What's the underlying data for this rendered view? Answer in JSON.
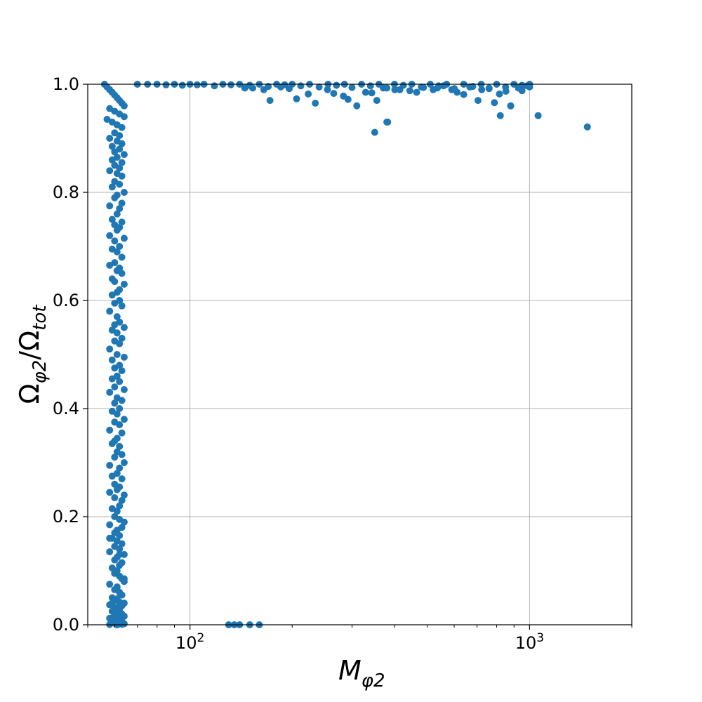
{
  "chart_data": {
    "type": "scatter",
    "title": "",
    "xlabel": {
      "main": "M",
      "sub": "φ2"
    },
    "ylabel": {
      "num": "Ω",
      "num_sub": "φ2",
      "slash": "/",
      "den": "Ω",
      "den_sub": "tot"
    },
    "xscale": "log",
    "xlim": [
      50,
      2000
    ],
    "ylim": [
      0.0,
      1.0
    ],
    "grid": true,
    "marker_color": "#1f77b4",
    "y_ticks": [
      {
        "value": 0.0,
        "label": "0.0"
      },
      {
        "value": 0.2,
        "label": "0.2"
      },
      {
        "value": 0.4,
        "label": "0.4"
      },
      {
        "value": 0.6,
        "label": "0.6"
      },
      {
        "value": 0.8,
        "label": "0.8"
      },
      {
        "value": 1.0,
        "label": "1.0"
      }
    ],
    "x_ticks": [
      {
        "value": 100,
        "base": "10",
        "exp": "2"
      },
      {
        "value": 1000,
        "base": "10",
        "exp": "3"
      }
    ],
    "x_minor_ticks": [
      50,
      60,
      70,
      80,
      90,
      200,
      300,
      400,
      500,
      600,
      700,
      800,
      900,
      2000
    ],
    "series": [
      {
        "name": "points",
        "x": [
          56,
          57,
          58,
          59,
          60,
          61,
          62,
          63,
          64,
          58,
          60,
          62,
          64,
          57,
          59,
          61,
          63,
          60,
          62,
          58,
          61,
          63,
          59,
          62,
          60,
          64,
          61,
          59,
          63,
          60,
          62,
          58,
          61,
          63,
          60,
          62,
          59,
          64,
          61,
          60,
          63,
          58,
          62,
          61,
          59,
          63,
          60,
          62,
          61,
          58,
          64,
          60,
          62,
          59,
          61,
          63,
          60,
          58,
          62,
          61,
          63,
          59,
          60,
          64,
          62,
          61,
          59,
          62,
          60,
          63,
          58,
          61,
          62,
          60,
          64,
          59,
          61,
          63,
          60,
          62,
          58,
          61,
          64,
          59,
          62,
          60,
          63,
          61,
          59,
          62,
          60,
          64,
          58,
          61,
          63,
          60,
          62,
          59,
          61,
          64,
          60,
          62,
          58,
          63,
          61,
          60,
          59,
          62,
          61,
          63,
          60,
          64,
          58,
          62,
          61,
          59,
          63,
          60,
          62,
          61,
          58,
          64,
          60,
          63,
          62,
          59,
          61,
          60,
          62,
          64,
          58,
          63,
          61,
          60,
          62,
          59,
          61,
          63,
          60,
          62,
          58,
          64,
          61,
          60,
          63,
          62,
          59,
          61,
          60,
          62,
          63,
          64,
          58,
          61,
          60,
          62,
          63,
          59,
          61,
          60,
          62,
          64,
          58,
          63,
          61,
          60,
          62,
          59,
          61,
          63,
          60,
          64,
          62,
          58,
          61,
          60,
          63,
          62,
          59,
          61,
          60,
          64,
          62,
          63,
          58,
          61,
          60,
          62,
          59,
          63,
          61,
          64,
          60,
          62,
          58,
          61,
          70,
          75,
          80,
          85,
          90,
          95,
          100,
          105,
          110,
          118,
          125,
          132,
          140,
          150,
          160,
          170,
          180,
          190,
          200,
          212,
          225,
          240,
          255,
          270,
          285,
          300,
          320,
          340,
          360,
          380,
          400,
          425,
          450,
          480,
          510,
          540,
          570,
          600,
          640,
          680,
          720,
          760,
          800,
          850,
          900,
          950,
          1000,
          145,
          150,
          165,
          185,
          206,
          234,
          265,
          292,
          310,
          343,
          355,
          382,
          415,
          465,
          535,
          590,
          640,
          705,
          760,
          815,
          880,
          950,
          1000,
          153,
          172,
          196,
          223,
          254,
          283,
          329,
          371,
          401,
          444,
          487,
          520,
          558,
          612,
          667,
          723,
          788,
          852,
          927,
          984,
          350,
          380,
          820,
          880,
          1060,
          1480,
          130,
          135,
          140,
          150,
          160
        ],
        "y": [
          1.0,
          0.995,
          0.99,
          0.985,
          0.98,
          0.975,
          0.97,
          0.965,
          0.96,
          0.955,
          0.95,
          0.945,
          0.94,
          0.935,
          0.93,
          0.925,
          0.92,
          0.91,
          0.905,
          0.9,
          0.895,
          0.89,
          0.885,
          0.88,
          0.875,
          0.87,
          0.865,
          0.86,
          0.855,
          0.85,
          0.845,
          0.84,
          0.835,
          0.83,
          0.82,
          0.815,
          0.81,
          0.8,
          0.795,
          0.79,
          0.78,
          0.775,
          0.77,
          0.76,
          0.75,
          0.745,
          0.74,
          0.735,
          0.73,
          0.72,
          0.715,
          0.71,
          0.7,
          0.695,
          0.69,
          0.68,
          0.67,
          0.665,
          0.66,
          0.655,
          0.65,
          0.64,
          0.635,
          0.63,
          0.62,
          0.615,
          0.61,
          0.6,
          0.595,
          0.59,
          0.58,
          0.57,
          0.56,
          0.555,
          0.55,
          0.545,
          0.54,
          0.53,
          0.525,
          0.52,
          0.51,
          0.5,
          0.495,
          0.49,
          0.48,
          0.475,
          0.47,
          0.46,
          0.455,
          0.45,
          0.44,
          0.435,
          0.43,
          0.42,
          0.415,
          0.41,
          0.4,
          0.395,
          0.39,
          0.38,
          0.375,
          0.37,
          0.36,
          0.355,
          0.345,
          0.34,
          0.335,
          0.33,
          0.32,
          0.315,
          0.31,
          0.3,
          0.295,
          0.29,
          0.28,
          0.275,
          0.27,
          0.26,
          0.255,
          0.25,
          0.245,
          0.24,
          0.235,
          0.23,
          0.22,
          0.215,
          0.21,
          0.2,
          0.195,
          0.19,
          0.185,
          0.18,
          0.175,
          0.17,
          0.165,
          0.16,
          0.155,
          0.15,
          0.145,
          0.14,
          0.135,
          0.13,
          0.125,
          0.12,
          0.115,
          0.11,
          0.105,
          0.1,
          0.095,
          0.09,
          0.085,
          0.08,
          0.075,
          0.07,
          0.065,
          0.06,
          0.055,
          0.05,
          0.048,
          0.045,
          0.042,
          0.04,
          0.037,
          0.035,
          0.032,
          0.03,
          0.028,
          0.025,
          0.022,
          0.02,
          0.018,
          0.016,
          0.014,
          0.012,
          0.01,
          0.008,
          0.007,
          0.006,
          0.005,
          0.004,
          0.003,
          0.002,
          0.0015,
          0.001,
          0.0005,
          0.0,
          0.012,
          0.025,
          0.04,
          0.055,
          0.07,
          0.085,
          0.1,
          0.13,
          0.16,
          0.0,
          1.0,
          1.0,
          1.0,
          0.999,
          1.0,
          0.998,
          1.0,
          0.999,
          1.0,
          0.997,
          1.0,
          0.999,
          1.0,
          0.998,
          1.0,
          0.996,
          1.0,
          0.999,
          1.0,
          0.997,
          1.0,
          0.995,
          1.0,
          0.998,
          1.0,
          0.994,
          1.0,
          0.997,
          1.0,
          0.993,
          1.0,
          0.998,
          1.0,
          0.995,
          1.0,
          0.997,
          1.0,
          0.992,
          1.0,
          0.996,
          1.0,
          0.993,
          1.0,
          0.995,
          1.0,
          0.998,
          1.0,
          0.993,
          0.998,
          0.99,
          0.995,
          0.973,
          0.965,
          0.983,
          0.972,
          0.96,
          0.984,
          0.97,
          0.93,
          0.99,
          0.985,
          0.993,
          0.99,
          0.981,
          0.97,
          0.992,
          0.982,
          0.96,
          0.988,
          0.995,
          0.993,
          0.97,
          0.992,
          0.982,
          0.99,
          0.978,
          0.985,
          0.993,
          0.99,
          0.988,
          0.994,
          0.99,
          0.997,
          0.985,
          0.995,
          0.99,
          0.966,
          0.987,
          0.993,
          0.997,
          0.911,
          0.93,
          0.942,
          0.96,
          0.942,
          0.921,
          0.0,
          0.0,
          0.0,
          0.0,
          0.0
        ]
      }
    ]
  }
}
